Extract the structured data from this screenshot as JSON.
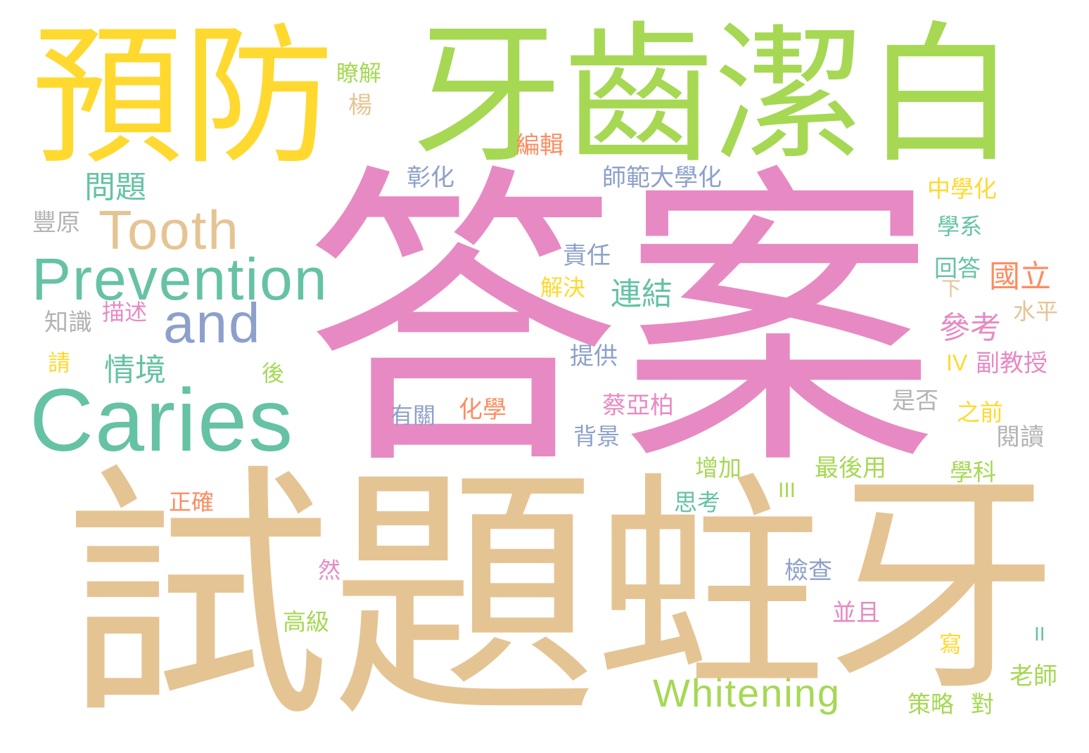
{
  "palette": {
    "yellow": "#ffd92f",
    "green": "#a6d854",
    "pink": "#e78ac3",
    "tan": "#e5c494",
    "teal": "#66c2a5",
    "blue": "#8da0cb",
    "orange": "#fc8d62",
    "gray": "#b3b3b3"
  },
  "words": {
    "w00": {
      "text": "答案",
      "color": "#e78ac3"
    },
    "w01": {
      "text": "試題",
      "color": "#e5c494"
    },
    "w02": {
      "text": "蛀牙",
      "color": "#e5c494"
    },
    "w03": {
      "text": "牙齒潔白",
      "color": "#a6d854"
    },
    "w04": {
      "text": "預防",
      "color": "#ffd92f"
    },
    "w05": {
      "text": "Caries",
      "color": "#66c2a5"
    },
    "w06": {
      "text": "Prevention",
      "color": "#66c2a5"
    },
    "w07": {
      "text": "Tooth",
      "color": "#e5c494"
    },
    "w08": {
      "text": "and",
      "color": "#8da0cb"
    },
    "w09": {
      "text": "Whitening",
      "color": "#a6d854"
    },
    "w10": {
      "text": "問題",
      "color": "#66c2a5"
    },
    "w11": {
      "text": "豐原",
      "color": "#b3b3b3"
    },
    "w12": {
      "text": "瞭解",
      "color": "#a6d854"
    },
    "w13": {
      "text": "楊",
      "color": "#e5c494"
    },
    "w14": {
      "text": "編輯",
      "color": "#fc8d62"
    },
    "w15": {
      "text": "彰化",
      "color": "#8da0cb"
    },
    "w16": {
      "text": "師範大學化",
      "color": "#8da0cb"
    },
    "w17": {
      "text": "中學化",
      "color": "#ffd92f"
    },
    "w18": {
      "text": "學系",
      "color": "#66c2a5"
    },
    "w19": {
      "text": "責任",
      "color": "#8da0cb"
    },
    "w20": {
      "text": "回答",
      "color": "#66c2a5"
    },
    "w21": {
      "text": "國立",
      "color": "#fc8d62"
    },
    "w22": {
      "text": "下",
      "color": "#e5c494"
    },
    "w23": {
      "text": "解決",
      "color": "#ffd92f"
    },
    "w24": {
      "text": "連結",
      "color": "#66c2a5"
    },
    "w25": {
      "text": "水平",
      "color": "#e5c494"
    },
    "w26": {
      "text": "參考",
      "color": "#e78ac3"
    },
    "w27": {
      "text": "知識",
      "color": "#b3b3b3"
    },
    "w28": {
      "text": "描述",
      "color": "#e78ac3"
    },
    "w29": {
      "text": "提供",
      "color": "#8da0cb"
    },
    "w30": {
      "text": "IV",
      "color": "#ffd92f"
    },
    "w31": {
      "text": "副教授",
      "color": "#e78ac3"
    },
    "w32": {
      "text": "情境",
      "color": "#66c2a5"
    },
    "w33": {
      "text": "請",
      "color": "#ffd92f"
    },
    "w34": {
      "text": "後",
      "color": "#a6d854"
    },
    "w35": {
      "text": "是否",
      "color": "#b3b3b3"
    },
    "w36": {
      "text": "有關",
      "color": "#8da0cb"
    },
    "w37": {
      "text": "化學",
      "color": "#fc8d62"
    },
    "w38": {
      "text": "蔡亞柏",
      "color": "#e78ac3"
    },
    "w39": {
      "text": "之前",
      "color": "#ffd92f"
    },
    "w40": {
      "text": "背景",
      "color": "#8da0cb"
    },
    "w41": {
      "text": "閱讀",
      "color": "#b3b3b3"
    },
    "w42": {
      "text": "增加",
      "color": "#a6d854"
    },
    "w43": {
      "text": "最後用",
      "color": "#a6d854"
    },
    "w44": {
      "text": "學科",
      "color": "#a6d854"
    },
    "w45": {
      "text": "正確",
      "color": "#fc8d62"
    },
    "w46": {
      "text": "III",
      "color": "#a6d854"
    },
    "w47": {
      "text": "思考",
      "color": "#66c2a5"
    },
    "w48": {
      "text": "然",
      "color": "#e78ac3"
    },
    "w49": {
      "text": "檢查",
      "color": "#8da0cb"
    },
    "w50": {
      "text": "高級",
      "color": "#a6d854"
    },
    "w51": {
      "text": "並且",
      "color": "#e78ac3"
    },
    "w52": {
      "text": "II",
      "color": "#66c2a5"
    },
    "w53": {
      "text": "寫",
      "color": "#ffd92f"
    },
    "w54": {
      "text": "老師",
      "color": "#a6d854"
    },
    "w55": {
      "text": "策略",
      "color": "#a6d854"
    },
    "w56": {
      "text": "對",
      "color": "#a6d854"
    }
  }
}
